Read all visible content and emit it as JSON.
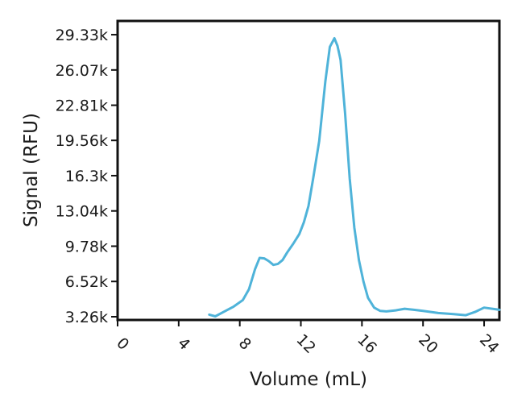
{
  "chart_data": {
    "type": "line",
    "title": "",
    "xlabel": "Volume (mL)",
    "ylabel": "Signal (RFU)",
    "xlim": [
      0,
      25
    ],
    "ylim": [
      3260,
      30600
    ],
    "x_ticks": [
      0,
      4,
      8,
      12,
      16,
      20,
      24
    ],
    "x_tick_labels": [
      "0",
      "4",
      "8",
      "12",
      "16",
      "20",
      "24"
    ],
    "y_ticks": [
      3260,
      6520,
      9780,
      13040,
      16300,
      19560,
      22810,
      26070,
      29330
    ],
    "y_tick_labels": [
      "3.26k",
      "6.52k",
      "9.78k",
      "13.04k",
      "16.3k",
      "19.56k",
      "22.81k",
      "26.07k",
      "29.33k"
    ],
    "grid": false,
    "legend": false,
    "line_color": "#4fb3d9",
    "series": [
      {
        "x": [
          6.0,
          6.4,
          7.0,
          7.6,
          8.2,
          8.6,
          9.0,
          9.3,
          9.6,
          9.9,
          10.2,
          10.5,
          10.8,
          11.1,
          11.5,
          11.9,
          12.2,
          12.5,
          12.8,
          13.2,
          13.6,
          13.9,
          14.2,
          14.4,
          14.6,
          14.9,
          15.2,
          15.5,
          15.8,
          16.1,
          16.4,
          16.8,
          17.2,
          17.6,
          18.2,
          18.8,
          19.4,
          20.0,
          21.0,
          22.0,
          22.8,
          23.4,
          24.0,
          25.0
        ],
        "y": [
          3450,
          3300,
          3750,
          4200,
          4800,
          5800,
          7650,
          8700,
          8650,
          8400,
          8050,
          8150,
          8500,
          9200,
          10000,
          10900,
          12000,
          13500,
          16000,
          19500,
          25000,
          28200,
          29000,
          28300,
          27000,
          22000,
          16000,
          11500,
          8500,
          6500,
          5000,
          4100,
          3800,
          3750,
          3850,
          4000,
          3900,
          3800,
          3600,
          3500,
          3400,
          3700,
          4100,
          3900
        ]
      }
    ]
  }
}
